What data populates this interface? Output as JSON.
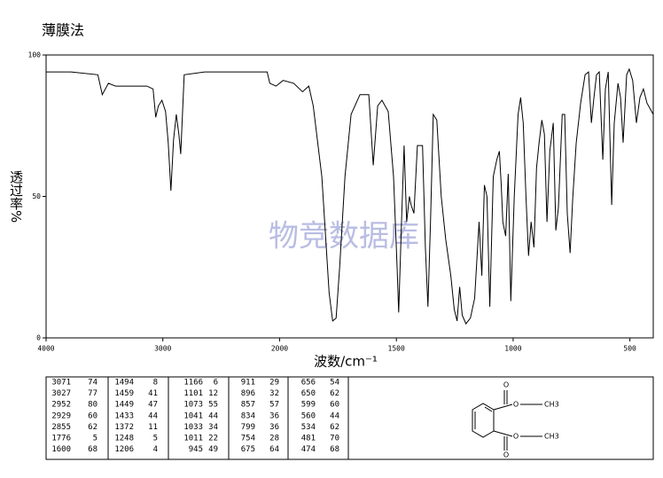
{
  "chart_data": {
    "type": "line",
    "title": "薄膜法",
    "watermark": "物竞数据库",
    "xlabel": "波数/cm⁻¹",
    "ylabel": "透过率%",
    "xlim": [
      4000,
      400
    ],
    "x_scale_break": 2000,
    "xticks": [
      4000,
      3000,
      2000,
      1500,
      1000,
      500
    ],
    "ylim": [
      0,
      100
    ],
    "yticks": [
      0,
      50,
      100
    ],
    "color": "#000000",
    "x": [
      4000,
      3786,
      3557,
      3519,
      3466,
      3405,
      3137,
      3084,
      3061,
      3038,
      3008,
      2977,
      2954,
      2931,
      2908,
      2885,
      2863,
      2847,
      2817,
      2641,
      2183,
      2107,
      2084,
      2031,
      1985,
      1940,
      1902,
      1875,
      1856,
      1819,
      1788,
      1773,
      1758,
      1743,
      1720,
      1694,
      1656,
      1618,
      1599,
      1580,
      1562,
      1535,
      1512,
      1497,
      1490,
      1478,
      1467,
      1456,
      1444,
      1437,
      1425,
      1410,
      1388,
      1376,
      1365,
      1354,
      1342,
      1327,
      1308,
      1289,
      1267,
      1252,
      1240,
      1229,
      1218,
      1202,
      1183,
      1165,
      1146,
      1134,
      1123,
      1112,
      1100,
      1085,
      1070,
      1059,
      1051,
      1044,
      1032,
      1021,
      1010,
      995,
      979,
      968,
      957,
      945,
      934,
      923,
      911,
      900,
      889,
      877,
      866,
      855,
      843,
      828,
      817,
      806,
      790,
      779,
      768,
      756,
      745,
      730,
      711,
      692,
      677,
      665,
      654,
      643,
      631,
      616,
      605,
      593,
      578,
      567,
      551,
      540,
      529,
      514,
      503,
      488,
      472,
      457,
      442,
      427,
      400
    ],
    "values": [
      94,
      94,
      93,
      86,
      90,
      89,
      89,
      88,
      78,
      82,
      84,
      80,
      69,
      52,
      70,
      79,
      72,
      65,
      93,
      94,
      94,
      94,
      90,
      89,
      91,
      90,
      87,
      89,
      82,
      57,
      16,
      6,
      7,
      25,
      57,
      79,
      86,
      86,
      61,
      82,
      84,
      80,
      57,
      25,
      9,
      41,
      68,
      41,
      50,
      47,
      44,
      68,
      68,
      32,
      11,
      41,
      79,
      77,
      50,
      35,
      22,
      10,
      6,
      18,
      8,
      5,
      7,
      14,
      41,
      22,
      54,
      50,
      11,
      57,
      63,
      66,
      54,
      41,
      36,
      58,
      13,
      50,
      79,
      85,
      76,
      50,
      29,
      41,
      32,
      60,
      69,
      77,
      72,
      41,
      66,
      76,
      38,
      46,
      79,
      79,
      44,
      30,
      49,
      69,
      83,
      93,
      94,
      76,
      85,
      93,
      94,
      63,
      88,
      94,
      47,
      76,
      90,
      85,
      69,
      93,
      95,
      91,
      76,
      85,
      88,
      83,
      79
    ]
  },
  "peak_table": [
    [
      [
        3071,
        74
      ],
      [
        3027,
        77
      ],
      [
        2952,
        80
      ],
      [
        2929,
        60
      ],
      [
        2855,
        62
      ],
      [
        1776,
        5
      ],
      [
        1600,
        68
      ]
    ],
    [
      [
        1494,
        8
      ],
      [
        1459,
        41
      ],
      [
        1449,
        47
      ],
      [
        1433,
        44
      ],
      [
        1372,
        11
      ],
      [
        1248,
        5
      ],
      [
        1206,
        4
      ]
    ],
    [
      [
        1166,
        6
      ],
      [
        1101,
        12
      ],
      [
        1073,
        55
      ],
      [
        1041,
        44
      ],
      [
        1033,
        34
      ],
      [
        1011,
        22
      ],
      [
        945,
        49
      ]
    ],
    [
      [
        911,
        29
      ],
      [
        896,
        32
      ],
      [
        857,
        57
      ],
      [
        834,
        36
      ],
      [
        799,
        36
      ],
      [
        754,
        28
      ],
      [
        675,
        64
      ]
    ],
    [
      [
        656,
        54
      ],
      [
        650,
        62
      ],
      [
        599,
        60
      ],
      [
        560,
        44
      ],
      [
        534,
        62
      ],
      [
        481,
        70
      ],
      [
        474,
        68
      ]
    ]
  ],
  "structure": {
    "labels": [
      "O",
      "O",
      "CH3",
      "O",
      "O",
      "CH3"
    ]
  }
}
